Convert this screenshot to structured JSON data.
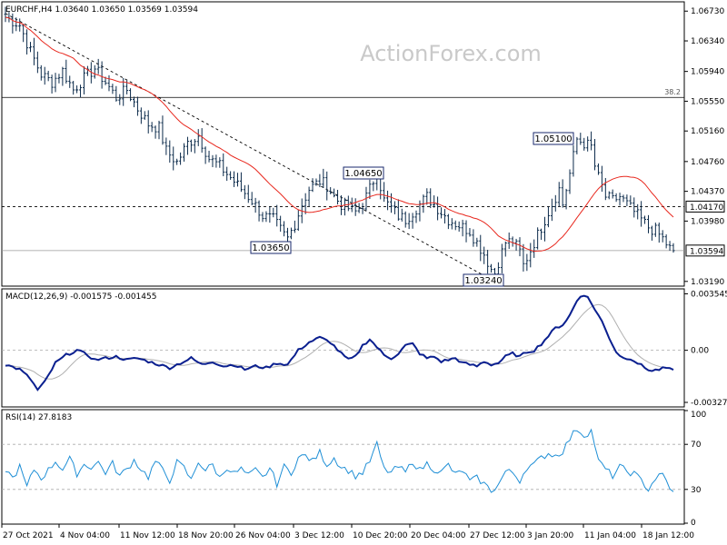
{
  "chart_data": [
    {
      "type": "candlestick",
      "panel": "price",
      "header": "EURCHF,H4  1.03640 1.03650 1.03569 1.03594",
      "watermark": "ActionForex.com",
      "y_ticks": [
        "1.06730",
        "1.06340",
        "1.05940",
        "1.05550",
        "1.05160",
        "1.04760",
        "1.04370",
        "1.03980",
        "1.03190"
      ],
      "y_tick_values": [
        1.0673,
        1.0634,
        1.0594,
        1.0555,
        1.0516,
        1.0476,
        1.0437,
        1.0398,
        1.0319
      ],
      "ylim": [
        1.0314,
        1.0684
      ],
      "fib_label": "38.2",
      "fib_level": 1.056,
      "resistance_level": 1.0417,
      "resistance_label": "1.04170",
      "current_level": 1.03594,
      "current_label": "1.03594",
      "annotations": [
        {
          "label": "1.04650",
          "value": 1.0465
        },
        {
          "label": "1.03650",
          "value": 1.0365
        },
        {
          "label": "1.03240",
          "value": 1.0324
        },
        {
          "label": "1.05100",
          "value": 1.051
        }
      ],
      "ma_color": "#e8281e",
      "candle_color": "#0b2a4a",
      "trendline": {
        "from": [
          0,
          1.067
        ],
        "to": [
          135,
          1.0324
        ],
        "style": "dashed"
      }
    },
    {
      "type": "line",
      "panel": "macd",
      "header": "MACD(12,26,9) -0.001575 -0.001455",
      "y_ticks": [
        "0.003545",
        "0.00",
        "-0.003272"
      ],
      "y_tick_values": [
        0.003545,
        0.0,
        -0.003272
      ],
      "ylim": [
        -0.0035,
        0.0038
      ],
      "series_colors": {
        "macd": "#0a1f8f",
        "signal": "#b0b0b0"
      }
    },
    {
      "type": "line",
      "panel": "rsi",
      "header": "RSI(14) 27.8183",
      "y_ticks": [
        "100",
        "70",
        "30",
        "0"
      ],
      "y_tick_values": [
        100,
        70,
        30,
        0
      ],
      "ylim": [
        0,
        100
      ],
      "levels": [
        70,
        30
      ],
      "line_color": "#1f8fd6"
    }
  ],
  "x_labels": [
    "27 Oct 2021",
    "4 Nov 04:00",
    "11 Nov 12:00",
    "18 Nov 20:00",
    "26 Nov 04:00",
    "3 Dec 12:00",
    "10 Dec 20:00",
    "20 Dec 04:00",
    "27 Dec 12:00",
    "3 Jan 20:00",
    "11 Jan 04:00",
    "18 Jan 12:00"
  ],
  "keypoints": {
    "close": [
      [
        0,
        1.0665
      ],
      [
        4,
        1.0655
      ],
      [
        7,
        1.062
      ],
      [
        10,
        1.059
      ],
      [
        13,
        1.058
      ],
      [
        16,
        1.0595
      ],
      [
        19,
        1.057
      ],
      [
        22,
        1.0585
      ],
      [
        25,
        1.0598
      ],
      [
        28,
        1.058
      ],
      [
        31,
        1.056
      ],
      [
        34,
        1.057
      ],
      [
        37,
        1.0545
      ],
      [
        40,
        1.0525
      ],
      [
        43,
        1.052
      ],
      [
        45,
        1.049
      ],
      [
        48,
        1.0475
      ],
      [
        51,
        1.05
      ],
      [
        54,
        1.051
      ],
      [
        57,
        1.048
      ],
      [
        60,
        1.047
      ],
      [
        63,
        1.0455
      ],
      [
        66,
        1.044
      ],
      [
        69,
        1.0425
      ],
      [
        72,
        1.0405
      ],
      [
        75,
        1.04
      ],
      [
        78,
        1.038
      ],
      [
        79,
        1.0375
      ],
      [
        81,
        1.0395
      ],
      [
        83,
        1.042
      ],
      [
        85,
        1.044
      ],
      [
        88,
        1.045
      ],
      [
        90,
        1.0445
      ],
      [
        92,
        1.043
      ],
      [
        94,
        1.042
      ],
      [
        96,
        1.0415
      ],
      [
        98,
        1.041
      ],
      [
        100,
        1.042
      ],
      [
        102,
        1.044
      ],
      [
        104,
        1.0462
      ],
      [
        106,
        1.0425
      ],
      [
        108,
        1.0415
      ],
      [
        110,
        1.0405
      ],
      [
        112,
        1.04
      ],
      [
        114,
        1.041
      ],
      [
        116,
        1.042
      ],
      [
        118,
        1.043
      ],
      [
        120,
        1.042
      ],
      [
        122,
        1.041
      ],
      [
        124,
        1.04
      ],
      [
        126,
        1.0395
      ],
      [
        128,
        1.039
      ],
      [
        130,
        1.0385
      ],
      [
        132,
        1.037
      ],
      [
        134,
        1.0355
      ],
      [
        136,
        1.0335
      ],
      [
        137,
        1.033
      ],
      [
        138,
        1.0345
      ],
      [
        140,
        1.037
      ],
      [
        142,
        1.0372
      ],
      [
        144,
        1.0358
      ],
      [
        145,
        1.034
      ],
      [
        147,
        1.036
      ],
      [
        149,
        1.038
      ],
      [
        151,
        1.04
      ],
      [
        153,
        1.042
      ],
      [
        155,
        1.044
      ],
      [
        156,
        1.042
      ],
      [
        158,
        1.046
      ],
      [
        160,
        1.0505
      ],
      [
        162,
        1.05
      ],
      [
        164,
        1.0495
      ],
      [
        165,
        1.047
      ],
      [
        166,
        1.0455
      ],
      [
        168,
        1.043
      ],
      [
        170,
        1.0425
      ],
      [
        172,
        1.043
      ],
      [
        174,
        1.042
      ],
      [
        176,
        1.041
      ],
      [
        178,
        1.04
      ],
      [
        180,
        1.039
      ],
      [
        182,
        1.0385
      ],
      [
        184,
        1.0375
      ],
      [
        186,
        1.0362
      ],
      [
        187,
        1.03594
      ]
    ],
    "macd": [
      [
        0,
        -0.0009
      ],
      [
        4,
        -0.0012
      ],
      [
        7,
        -0.0018
      ],
      [
        9,
        -0.0025
      ],
      [
        11,
        -0.002
      ],
      [
        14,
        -0.0008
      ],
      [
        17,
        -0.0003
      ],
      [
        20,
        0.0
      ],
      [
        23,
        -0.0003
      ],
      [
        25,
        -0.0006
      ],
      [
        28,
        -0.0005
      ],
      [
        31,
        -0.0004
      ],
      [
        34,
        -0.0006
      ],
      [
        37,
        -0.0005
      ],
      [
        40,
        -0.0007
      ],
      [
        43,
        -0.0009
      ],
      [
        46,
        -0.0011
      ],
      [
        49,
        -0.0008
      ],
      [
        52,
        -0.0005
      ],
      [
        55,
        -0.0009
      ],
      [
        58,
        -0.0007
      ],
      [
        61,
        -0.001
      ],
      [
        64,
        -0.0009
      ],
      [
        67,
        -0.0012
      ],
      [
        70,
        -0.001
      ],
      [
        73,
        -0.0011
      ],
      [
        76,
        -0.0008
      ],
      [
        79,
        -0.0009
      ],
      [
        82,
        0.0
      ],
      [
        85,
        0.0005
      ],
      [
        88,
        0.0008
      ],
      [
        91,
        0.0005
      ],
      [
        94,
        -0.0002
      ],
      [
        96,
        -0.0006
      ],
      [
        98,
        -0.0004
      ],
      [
        100,
        0.0003
      ],
      [
        102,
        0.0007
      ],
      [
        104,
        0.0002
      ],
      [
        106,
        -0.0003
      ],
      [
        108,
        -0.0005
      ],
      [
        110,
        -0.0002
      ],
      [
        112,
        0.0003
      ],
      [
        114,
        0.0004
      ],
      [
        116,
        -0.0002
      ],
      [
        118,
        -0.0005
      ],
      [
        120,
        -0.0004
      ],
      [
        122,
        -0.0007
      ],
      [
        124,
        -0.0006
      ],
      [
        126,
        -0.0005
      ],
      [
        128,
        -0.0008
      ],
      [
        130,
        -0.0009
      ],
      [
        132,
        -0.001
      ],
      [
        134,
        -0.0007
      ],
      [
        136,
        -0.0009
      ],
      [
        138,
        -0.0008
      ],
      [
        140,
        -0.0004
      ],
      [
        142,
        -0.0002
      ],
      [
        144,
        -0.0004
      ],
      [
        146,
        -0.0001
      ],
      [
        148,
        0.0
      ],
      [
        150,
        0.0004
      ],
      [
        152,
        0.0009
      ],
      [
        154,
        0.0014
      ],
      [
        156,
        0.0016
      ],
      [
        158,
        0.0022
      ],
      [
        160,
        0.0031
      ],
      [
        161,
        0.0034
      ],
      [
        162,
        0.0035
      ],
      [
        163,
        0.0033
      ],
      [
        165,
        0.0026
      ],
      [
        167,
        0.0018
      ],
      [
        169,
        0.0008
      ],
      [
        171,
        -0.0001
      ],
      [
        173,
        -0.0005
      ],
      [
        175,
        -0.0005
      ],
      [
        177,
        -0.0008
      ],
      [
        179,
        -0.0011
      ],
      [
        181,
        -0.0013
      ],
      [
        183,
        -0.0012
      ],
      [
        185,
        -0.0011
      ],
      [
        187,
        -0.0013
      ]
    ],
    "rsi": [
      [
        0,
        48
      ],
      [
        2,
        40
      ],
      [
        4,
        50
      ],
      [
        6,
        32
      ],
      [
        8,
        48
      ],
      [
        10,
        40
      ],
      [
        12,
        47
      ],
      [
        14,
        55
      ],
      [
        16,
        48
      ],
      [
        18,
        57
      ],
      [
        20,
        44
      ],
      [
        22,
        52
      ],
      [
        24,
        50
      ],
      [
        26,
        54
      ],
      [
        28,
        45
      ],
      [
        30,
        53
      ],
      [
        32,
        42
      ],
      [
        34,
        48
      ],
      [
        36,
        56
      ],
      [
        38,
        48
      ],
      [
        40,
        41
      ],
      [
        42,
        55
      ],
      [
        44,
        47
      ],
      [
        46,
        38
      ],
      [
        48,
        54
      ],
      [
        50,
        49
      ],
      [
        52,
        38
      ],
      [
        54,
        55
      ],
      [
        56,
        47
      ],
      [
        58,
        52
      ],
      [
        60,
        40
      ],
      [
        62,
        50
      ],
      [
        64,
        44
      ],
      [
        66,
        48
      ],
      [
        68,
        42
      ],
      [
        70,
        47
      ],
      [
        72,
        40
      ],
      [
        74,
        49
      ],
      [
        76,
        35
      ],
      [
        78,
        50
      ],
      [
        80,
        45
      ],
      [
        82,
        58
      ],
      [
        84,
        60
      ],
      [
        86,
        55
      ],
      [
        88,
        63
      ],
      [
        90,
        52
      ],
      [
        92,
        58
      ],
      [
        94,
        50
      ],
      [
        96,
        47
      ],
      [
        98,
        42
      ],
      [
        100,
        45
      ],
      [
        102,
        55
      ],
      [
        104,
        70
      ],
      [
        106,
        48
      ],
      [
        108,
        45
      ],
      [
        110,
        50
      ],
      [
        112,
        45
      ],
      [
        114,
        55
      ],
      [
        116,
        47
      ],
      [
        118,
        53
      ],
      [
        120,
        48
      ],
      [
        122,
        45
      ],
      [
        124,
        52
      ],
      [
        126,
        43
      ],
      [
        128,
        47
      ],
      [
        130,
        37
      ],
      [
        132,
        40
      ],
      [
        134,
        35
      ],
      [
        136,
        29
      ],
      [
        138,
        34
      ],
      [
        140,
        46
      ],
      [
        142,
        45
      ],
      [
        144,
        38
      ],
      [
        146,
        50
      ],
      [
        148,
        52
      ],
      [
        150,
        58
      ],
      [
        152,
        62
      ],
      [
        154,
        60
      ],
      [
        156,
        64
      ],
      [
        158,
        75
      ],
      [
        160,
        84
      ],
      [
        162,
        78
      ],
      [
        164,
        82
      ],
      [
        165,
        70
      ],
      [
        166,
        55
      ],
      [
        168,
        48
      ],
      [
        170,
        42
      ],
      [
        172,
        50
      ],
      [
        174,
        46
      ],
      [
        176,
        44
      ],
      [
        178,
        38
      ],
      [
        180,
        30
      ],
      [
        182,
        40
      ],
      [
        184,
        43
      ],
      [
        186,
        32
      ],
      [
        187,
        28
      ]
    ]
  }
}
